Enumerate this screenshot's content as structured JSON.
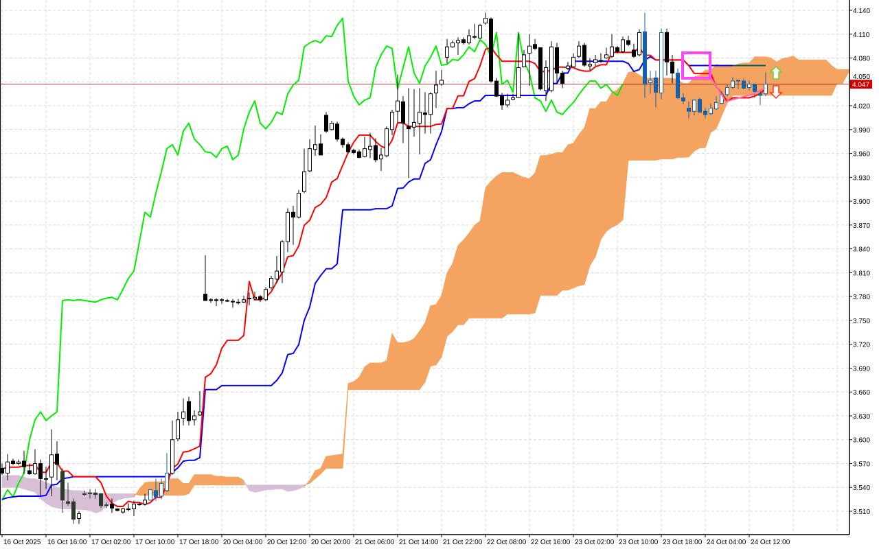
{
  "chart_data": {
    "type": "candlestick",
    "indicator": "ichimoku",
    "ichimoku_periods": {
      "tenkan": 9,
      "kijun": 26,
      "senkou_b": 52,
      "shift": 26
    },
    "ylim": [
      3.495,
      4.152
    ],
    "y_ticks": [
      "4.140",
      "4.110",
      "4.080",
      "4.050",
      "4.020",
      "3.990",
      "3.960",
      "3.930",
      "3.900",
      "3.870",
      "3.840",
      "3.810",
      "3.780",
      "3.750",
      "3.720",
      "3.690",
      "3.660",
      "3.630",
      "3.600",
      "3.570",
      "3.540",
      "3.510"
    ],
    "x_tick_labels": [
      "16 Oct 2025",
      "16 Oct 16:00",
      "17 Oct 02:00",
      "17 Oct 10:00",
      "17 Oct 18:00",
      "20 Oct 04:00",
      "20 Oct 12:00",
      "20 Oct 20:00",
      "21 Oct 06:00",
      "21 Oct 14:00",
      "21 Oct 22:00",
      "22 Oct 08:00",
      "22 Oct 16:00",
      "23 Oct 02:00",
      "23 Oct 10:00",
      "23 Oct 18:00",
      "24 Oct 04:00",
      "24 Oct 12:00"
    ],
    "x_tick_every_bars": 8,
    "grid": true,
    "current_price": 4.047,
    "current_price_label": "4.047",
    "ohlc_fields": [
      "open",
      "high",
      "low",
      "close"
    ],
    "candles": [
      [
        3.564,
        3.57,
        3.556,
        3.558
      ],
      [
        3.558,
        3.582,
        3.549,
        3.572
      ],
      [
        3.573,
        3.576,
        3.568,
        3.57
      ],
      [
        3.57,
        3.575,
        3.568,
        3.572
      ],
      [
        3.573,
        3.586,
        3.557,
        3.566
      ],
      [
        3.561,
        3.57,
        3.556,
        3.557
      ],
      [
        3.557,
        3.588,
        3.556,
        3.57
      ],
      [
        3.57,
        3.575,
        3.53,
        3.551
      ],
      [
        3.55,
        3.566,
        3.538,
        3.551
      ],
      [
        3.553,
        3.613,
        3.529,
        3.581
      ],
      [
        3.582,
        3.598,
        3.549,
        3.569
      ],
      [
        3.56,
        3.564,
        3.508,
        3.524
      ],
      [
        3.522,
        3.546,
        3.517,
        3.52
      ],
      [
        3.522,
        3.526,
        3.494,
        3.5
      ],
      [
        3.501,
        3.51,
        3.494,
        3.507
      ],
      [
        3.532,
        3.536,
        3.529,
        3.532
      ],
      [
        3.532,
        3.538,
        3.526,
        3.533
      ],
      [
        3.533,
        3.538,
        3.526,
        3.531
      ],
      [
        3.532,
        3.533,
        3.514,
        3.517
      ],
      [
        3.518,
        3.521,
        3.514,
        3.518
      ],
      [
        3.519,
        3.526,
        3.508,
        3.514
      ],
      [
        3.513,
        3.513,
        3.51,
        3.511
      ],
      [
        3.509,
        3.514,
        3.507,
        3.513
      ],
      [
        3.513,
        3.52,
        3.51,
        3.513
      ],
      [
        3.513,
        3.523,
        3.504,
        3.519
      ],
      [
        3.519,
        3.521,
        3.517,
        3.519
      ],
      [
        3.519,
        3.532,
        3.517,
        3.524
      ],
      [
        3.524,
        3.538,
        3.523,
        3.537
      ],
      [
        3.536,
        3.551,
        3.523,
        3.528
      ],
      [
        3.529,
        3.551,
        3.525,
        3.545
      ],
      [
        3.536,
        3.583,
        3.534,
        3.558
      ],
      [
        3.558,
        3.624,
        3.556,
        3.6
      ],
      [
        3.601,
        3.635,
        3.598,
        3.625
      ],
      [
        3.627,
        3.652,
        3.618,
        3.635
      ],
      [
        3.648,
        3.654,
        3.618,
        3.624
      ],
      [
        3.625,
        3.637,
        3.618,
        3.63
      ],
      [
        3.631,
        3.661,
        3.63,
        3.635
      ],
      [
        3.783,
        3.832,
        3.775,
        3.775
      ],
      [
        3.776,
        3.778,
        3.772,
        3.776
      ],
      [
        3.776,
        3.778,
        3.768,
        3.775
      ],
      [
        3.776,
        3.778,
        3.771,
        3.776
      ],
      [
        3.775,
        3.777,
        3.773,
        3.775
      ],
      [
        3.774,
        3.777,
        3.766,
        3.774
      ],
      [
        3.773,
        3.777,
        3.77,
        3.773
      ],
      [
        3.773,
        3.781,
        3.772,
        3.776
      ],
      [
        3.778,
        3.785,
        3.769,
        3.778
      ],
      [
        3.777,
        3.786,
        3.775,
        3.779
      ],
      [
        3.78,
        3.782,
        3.773,
        3.776
      ],
      [
        3.776,
        3.792,
        3.774,
        3.789
      ],
      [
        3.791,
        3.806,
        3.789,
        3.803
      ],
      [
        3.802,
        3.831,
        3.797,
        3.812
      ],
      [
        3.811,
        3.851,
        3.797,
        3.849
      ],
      [
        3.849,
        3.891,
        3.836,
        3.886
      ],
      [
        3.886,
        3.894,
        3.845,
        3.88
      ],
      [
        3.88,
        3.914,
        3.878,
        3.91
      ],
      [
        3.912,
        3.966,
        3.91,
        3.937
      ],
      [
        3.938,
        3.978,
        3.936,
        3.966
      ],
      [
        3.965,
        3.995,
        3.957,
        3.971
      ],
      [
        3.972,
        3.984,
        3.958,
        3.958
      ],
      [
        4.008,
        4.012,
        3.986,
        3.988
      ],
      [
        3.99,
        4.001,
        3.989,
        3.998
      ],
      [
        3.997,
        4.0,
        3.975,
        3.978
      ],
      [
        3.978,
        3.98,
        3.967,
        3.971
      ],
      [
        3.971,
        3.974,
        3.961,
        3.962
      ],
      [
        3.964,
        3.966,
        3.959,
        3.961
      ],
      [
        3.962,
        3.965,
        3.954,
        3.955
      ],
      [
        3.956,
        3.981,
        3.955,
        3.966
      ],
      [
        3.965,
        3.986,
        3.954,
        3.969
      ],
      [
        3.97,
        3.979,
        3.949,
        3.952
      ],
      [
        3.953,
        3.967,
        3.938,
        3.958
      ],
      [
        3.957,
        3.994,
        3.955,
        3.991
      ],
      [
        3.99,
        4.015,
        3.983,
        4.012
      ],
      [
        4.013,
        4.059,
        3.999,
        4.026
      ],
      [
        4.025,
        4.032,
        3.973,
        3.998
      ],
      [
        3.994,
        4.042,
        3.929,
        3.991
      ],
      [
        3.993,
        4.041,
        3.981,
        3.999
      ],
      [
        3.998,
        4.042,
        3.959,
        4.012
      ],
      [
        4.011,
        4.037,
        3.985,
        4.009
      ],
      [
        4.009,
        4.037,
        3.985,
        4.035
      ],
      [
        4.036,
        4.064,
        4.017,
        4.046
      ],
      [
        4.047,
        4.065,
        4.045,
        4.052
      ],
      [
        4.081,
        4.104,
        4.073,
        4.094
      ],
      [
        4.094,
        4.102,
        4.093,
        4.099
      ],
      [
        4.099,
        4.106,
        4.084,
        4.102
      ],
      [
        4.103,
        4.106,
        4.097,
        4.099
      ],
      [
        4.099,
        4.116,
        4.097,
        4.108
      ],
      [
        4.107,
        4.123,
        4.104,
        4.107
      ],
      [
        4.105,
        4.123,
        4.104,
        4.121
      ],
      [
        4.124,
        4.137,
        4.122,
        4.13
      ],
      [
        4.129,
        4.131,
        4.049,
        4.051
      ],
      [
        4.051,
        4.055,
        4.031,
        4.032
      ],
      [
        4.032,
        4.036,
        4.015,
        4.021
      ],
      [
        4.021,
        4.035,
        4.018,
        4.027
      ],
      [
        4.028,
        4.035,
        4.027,
        4.03
      ],
      [
        4.03,
        4.111,
        4.03,
        4.068
      ],
      [
        4.069,
        4.09,
        4.068,
        4.084
      ],
      [
        4.086,
        4.11,
        4.045,
        4.095
      ],
      [
        4.097,
        4.104,
        4.09,
        4.092
      ],
      [
        4.093,
        4.093,
        4.039,
        4.041
      ],
      [
        4.039,
        4.077,
        4.026,
        4.068
      ],
      [
        4.039,
        4.101,
        4.037,
        4.094
      ],
      [
        4.093,
        4.099,
        4.048,
        4.061
      ],
      [
        4.061,
        4.064,
        4.042,
        4.048
      ],
      [
        4.067,
        4.075,
        4.065,
        4.07
      ],
      [
        4.069,
        4.086,
        4.068,
        4.081
      ],
      [
        4.082,
        4.101,
        4.08,
        4.095
      ],
      [
        4.096,
        4.099,
        4.069,
        4.071
      ],
      [
        4.07,
        4.08,
        4.064,
        4.072
      ],
      [
        4.074,
        4.084,
        4.07,
        4.078
      ],
      [
        4.077,
        4.086,
        4.074,
        4.077
      ],
      [
        4.08,
        4.093,
        4.079,
        4.084
      ],
      [
        4.082,
        4.11,
        4.08,
        4.094
      ],
      [
        4.093,
        4.095,
        4.086,
        4.088
      ],
      [
        4.088,
        4.107,
        4.086,
        4.103
      ],
      [
        4.102,
        4.108,
        4.095,
        4.097
      ],
      [
        4.09,
        4.098,
        4.08,
        4.082
      ],
      [
        4.084,
        4.116,
        4.082,
        4.112
      ],
      [
        4.113,
        4.137,
        4.03,
        4.047
      ],
      [
        4.049,
        4.064,
        4.035,
        4.052
      ],
      [
        4.055,
        4.064,
        4.018,
        4.037
      ],
      [
        4.036,
        4.117,
        4.028,
        4.112
      ],
      [
        4.112,
        4.117,
        4.058,
        4.075
      ],
      [
        4.075,
        4.084,
        4.048,
        4.061
      ],
      [
        4.061,
        4.067,
        4.028,
        4.03
      ],
      [
        4.03,
        4.036,
        4.022,
        4.026
      ],
      [
        4.017,
        4.025,
        4.004,
        4.013
      ],
      [
        4.013,
        4.028,
        4.008,
        4.027
      ],
      [
        4.028,
        4.03,
        4.011,
        4.012
      ],
      [
        4.013,
        4.017,
        4.004,
        4.009
      ],
      [
        4.01,
        4.023,
        4.008,
        4.017
      ],
      [
        4.016,
        4.032,
        4.015,
        4.024
      ],
      [
        4.023,
        4.038,
        4.022,
        4.034
      ],
      [
        4.034,
        4.047,
        4.032,
        4.043
      ],
      [
        4.043,
        4.056,
        4.041,
        4.051
      ],
      [
        4.052,
        4.052,
        4.041,
        4.051
      ],
      [
        4.051,
        4.054,
        4.041,
        4.042
      ],
      [
        4.043,
        4.052,
        4.039,
        4.047
      ],
      [
        4.047,
        4.048,
        4.03,
        4.038
      ],
      [
        4.035,
        4.039,
        4.021,
        4.033
      ],
      [
        4.035,
        4.062,
        4.032,
        4.047
      ]
    ],
    "kijun_initial": [
      3.525,
      3.527,
      3.528,
      3.529,
      3.529,
      3.529,
      3.529,
      3.529,
      3.53,
      3.543,
      3.544,
      3.551,
      3.552
    ],
    "senkou_a_initial": [
      3.54,
      3.54,
      3.54,
      3.54,
      3.538,
      3.536,
      3.534,
      3.526,
      3.52,
      3.516,
      3.514,
      3.513,
      3.513,
      3.513,
      3.512,
      3.512,
      3.511,
      3.508,
      3.51,
      3.516,
      3.52,
      3.524,
      3.526,
      3.527,
      3.528,
      3.538,
      3.546,
      3.547,
      3.547,
      3.547,
      3.549,
      3.551,
      3.551,
      3.545,
      3.545,
      3.556,
      3.556,
      3.556,
      3.556,
      3.554,
      3.554,
      3.553,
      3.553,
      3.553,
      3.549,
      3.536,
      3.534,
      3.535,
      3.537,
      3.537,
      3.538,
      3.538,
      3.535,
      3.536,
      3.538,
      3.541,
      3.549,
      3.561,
      3.564,
      3.579,
      3.58,
      3.581,
      3.582
    ],
    "senkou_b_initial": [
      3.555,
      3.555,
      3.555,
      3.555,
      3.553,
      3.551,
      3.551,
      3.549,
      3.546,
      3.544,
      3.54,
      3.538,
      3.537,
      3.536,
      3.536,
      3.535,
      3.534,
      3.533,
      3.532,
      3.532,
      3.532,
      3.532,
      3.532,
      3.532,
      3.532,
      3.53,
      3.53,
      3.53,
      3.53,
      3.53,
      3.53,
      3.53,
      3.53,
      3.53,
      3.532,
      3.543,
      3.543,
      3.543,
      3.543,
      3.543,
      3.543,
      3.543,
      3.543,
      3.543,
      3.543,
      3.543,
      3.543,
      3.543,
      3.543,
      3.543,
      3.543,
      3.543,
      3.543,
      3.543,
      3.543,
      3.543,
      3.545,
      3.551,
      3.557,
      3.564,
      3.564,
      3.564,
      3.564
    ],
    "colors": {
      "tenkan": "#ff0000",
      "kijun": "#0000ff",
      "chikou": "#00ee00",
      "cloud_up": "#f4a460",
      "cloud_down": "#d8bfd8",
      "bull_body": "#ffffff",
      "bear_body": "#000000",
      "candle_in_up_cloud": "#1560a8",
      "candle_in_down_cloud": "#2b3b2b",
      "grid": "#d9d9d9",
      "price_line": "#8b0000",
      "price_label_bg": "#cc0000",
      "highlight_box": "#ff44ff",
      "projection_line": "#ff66b2",
      "kijun_projection": "#005f5f",
      "buy_arrow": "#66cc33",
      "sell_arrow": "#ff3311"
    },
    "signals": [
      {
        "type": "up-arrow",
        "color": "#66cc33"
      },
      {
        "type": "down-arrow",
        "color": "#ff3311"
      }
    ]
  }
}
